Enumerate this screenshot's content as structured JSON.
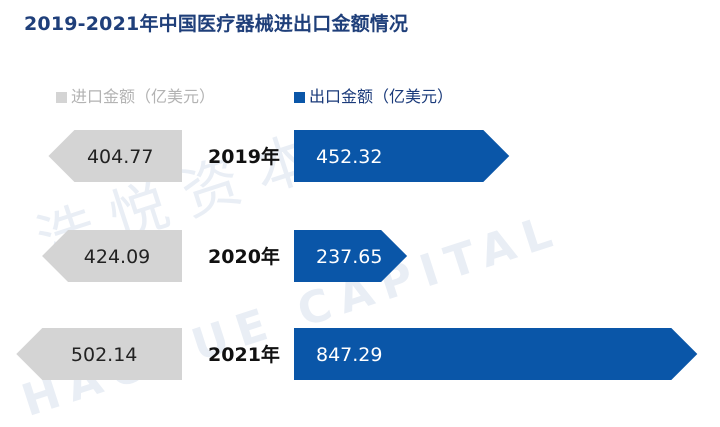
{
  "watermark": {
    "text": "浩悦资本",
    "sub": "HAOYUE CAPITAL"
  },
  "chart_data": {
    "type": "bar",
    "layout_style": "butterfly",
    "title": "2019-2021年中国医疗器械进出口金额情况",
    "categories": [
      "2019年",
      "2020年",
      "2021年"
    ],
    "series": [
      {
        "name": "进口金额（亿美元）",
        "values": [
          404.77,
          424.09,
          502.14
        ],
        "color": "#d4d4d4",
        "direction": "left"
      },
      {
        "name": "出口金额（亿美元）",
        "values": [
          452.32,
          237.65,
          847.29
        ],
        "color": "#0a56a8",
        "direction": "right"
      }
    ],
    "value_labels": {
      "import": [
        "404.77",
        "424.09",
        "502.14"
      ],
      "export": [
        "452.32",
        "237.65",
        "847.29"
      ]
    },
    "legend_position": "top"
  }
}
